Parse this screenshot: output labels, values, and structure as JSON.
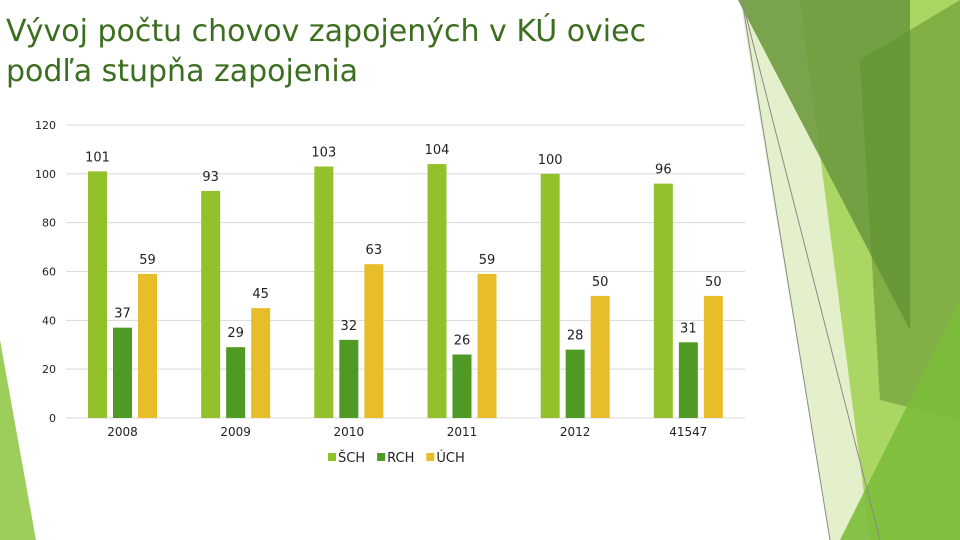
{
  "title": "Vývoj počtu chovov zapojených v KÚ oviec podľa stupňa zapojenia",
  "colors": {
    "series1": "#93c12b",
    "series2": "#4f9a24",
    "series3": "#e8bd2a",
    "grid": "#d9d9d9",
    "title": "#3c6e1f"
  },
  "chart_data": {
    "type": "bar",
    "title": "",
    "xlabel": "",
    "ylabel": "",
    "ylim": [
      0,
      120
    ],
    "yticks": [
      0,
      20,
      40,
      60,
      80,
      100,
      120
    ],
    "grid": true,
    "legend_position": "bottom",
    "categories": [
      "2008",
      "2009",
      "2010",
      "2011",
      "2012",
      "41547"
    ],
    "series": [
      {
        "name": "ŠCH",
        "values": [
          101,
          93,
          103,
          104,
          100,
          96
        ]
      },
      {
        "name": "RCH",
        "values": [
          37,
          29,
          32,
          26,
          28,
          31
        ]
      },
      {
        "name": "ÚCH",
        "values": [
          59,
          45,
          63,
          59,
          50,
          50
        ]
      }
    ]
  }
}
